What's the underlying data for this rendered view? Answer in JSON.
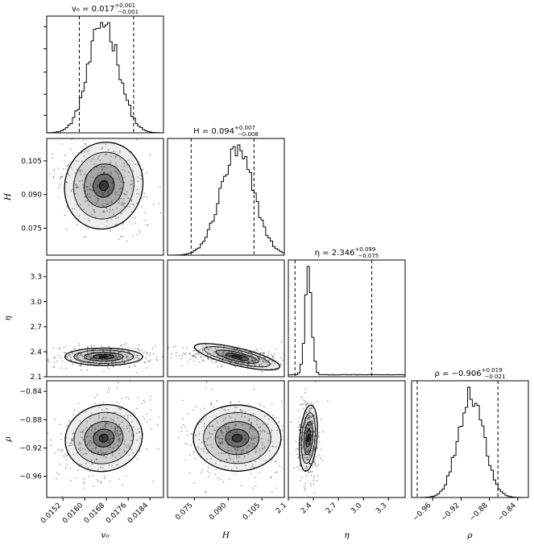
{
  "chart_data": {
    "type": "corner",
    "parameters": [
      {
        "key": "v0",
        "label": "v₀",
        "title_main": "v₀ = 0.017",
        "title_plus": "+0.001",
        "title_minus": "−0.001",
        "lim": [
          0.0146,
          0.0189
        ],
        "ticks": [
          0.0152,
          0.016,
          0.0168,
          0.0176,
          0.0184
        ],
        "ticklabels": [
          "0.0152",
          "0.0160",
          "0.0168",
          "0.0176",
          "0.0184"
        ],
        "mean": 0.0167,
        "sd": 0.00055,
        "quantiles": [
          0.0158,
          0.0178
        ]
      },
      {
        "key": "H",
        "label": "H",
        "title_main": "H = 0.094",
        "title_plus": "+0.007",
        "title_minus": "−0.008",
        "lim": [
          0.063,
          0.115
        ],
        "ticks": [
          0.075,
          0.09,
          0.105
        ],
        "ticklabels": [
          "0.075",
          "0.090",
          "0.105"
        ],
        "mean": 0.094,
        "sd": 0.0075,
        "quantiles": [
          0.0735,
          0.1015
        ]
      },
      {
        "key": "eta",
        "label": "η",
        "title_main": "η = 2.346",
        "title_plus": "+0.099",
        "title_minus": "−0.075",
        "lim": [
          2.1,
          3.5
        ],
        "ticks": [
          2.1,
          2.4,
          2.7,
          3.0,
          3.3
        ],
        "ticklabels": [
          "2.1",
          "2.4",
          "2.7",
          "3.0",
          "3.3"
        ],
        "mean": 2.34,
        "sd": 0.04,
        "quantiles": [
          2.18,
          3.1
        ]
      },
      {
        "key": "rho",
        "label": "ρ",
        "title_main": "ρ = −0.906",
        "title_plus": "+0.019",
        "title_minus": "−0.021",
        "lim": [
          -0.99,
          -0.825
        ],
        "ticks": [
          -0.96,
          -0.92,
          -0.88,
          -0.84
        ],
        "ticklabels": [
          "−0.96",
          "−0.92",
          "−0.88",
          "−0.84"
        ],
        "mean": -0.906,
        "sd": 0.018,
        "quantiles": [
          -0.982,
          -0.868
        ]
      }
    ],
    "correlations": {
      "1_0": -0.35,
      "2_0": 0.0,
      "2_1": -0.3,
      "3_0": 0.3,
      "3_1": 0.0,
      "3_2": -0.1
    },
    "histogram_bins": 50,
    "contour_levels": 4,
    "quantile_lines": "dashed"
  }
}
